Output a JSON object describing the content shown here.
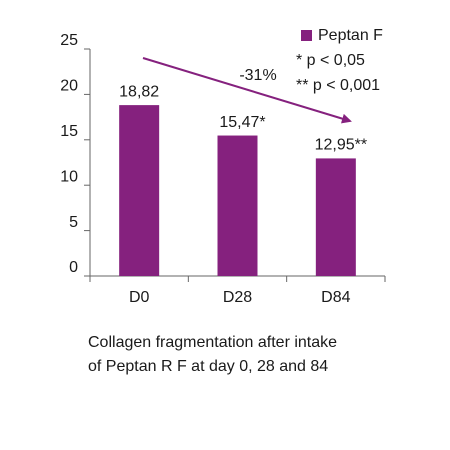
{
  "chart_data": {
    "type": "bar",
    "categories": [
      "D0",
      "D28",
      "D84"
    ],
    "series": [
      {
        "name": "Peptan F",
        "color": "#85217e",
        "values": [
          18.82,
          15.47,
          12.95
        ],
        "value_labels": [
          "18,82",
          "15,47*",
          "12,95**"
        ]
      }
    ],
    "ylim": [
      0,
      25
    ],
    "yticks": [
      0,
      5,
      10,
      15,
      20,
      25
    ],
    "annotation": "-31%",
    "notes": [
      "* p < 0,05",
      "** p < 0,001"
    ],
    "caption": [
      "Collagen fragmentation after intake",
      "of Peptan R F at day 0, 28 and 84"
    ]
  }
}
